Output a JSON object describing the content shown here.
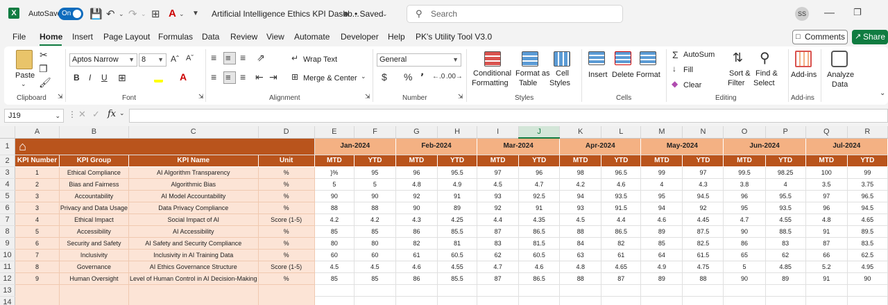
{
  "titlebar": {
    "logo": "X",
    "autosave_label": "AutoSave",
    "autosave_state": "On",
    "doc_title": "Artificial Intelligence Ethics KPI Dashb...",
    "saved_label": "• Saved",
    "search_placeholder": "Search",
    "avatar_initials": "SS"
  },
  "menu": {
    "items": [
      "File",
      "Home",
      "Insert",
      "Page Layout",
      "Formulas",
      "Data",
      "Review",
      "View",
      "Automate",
      "Developer",
      "Help",
      "PK's Utility Tool V3.0"
    ],
    "comments_label": "Comments",
    "share_label": "Share"
  },
  "ribbon": {
    "clipboard": {
      "paste": "Paste",
      "group": "Clipboard"
    },
    "font": {
      "name": "Aptos Narrow",
      "size": "8",
      "group": "Font"
    },
    "alignment": {
      "wrap": "Wrap Text",
      "merge": "Merge & Center",
      "group": "Alignment"
    },
    "number": {
      "format": "General",
      "group": "Number"
    },
    "styles": {
      "conditional": "Conditional",
      "conditional2": "Formatting",
      "format_as": "Format as",
      "format_as2": "Table",
      "cell": "Cell",
      "cell2": "Styles",
      "group": "Styles"
    },
    "cells": {
      "insert": "Insert",
      "delete": "Delete",
      "format": "Format",
      "group": "Cells"
    },
    "editing": {
      "autosum": "AutoSum",
      "fill": "Fill",
      "clear": "Clear",
      "sort": "Sort &",
      "sort2": "Filter",
      "find": "Find &",
      "find2": "Select",
      "group": "Editing"
    },
    "addins": {
      "label": "Add-ins",
      "group": "Add-ins"
    },
    "analyze": {
      "label": "Analyze",
      "label2": "Data"
    }
  },
  "formula_bar": {
    "name_box": "J19",
    "formula": ""
  },
  "sheet": {
    "selected_column": "J",
    "columns": [
      "A",
      "B",
      "C",
      "D",
      "E",
      "F",
      "G",
      "H",
      "I",
      "J",
      "K",
      "L",
      "M",
      "N",
      "O",
      "P",
      "Q",
      "R"
    ],
    "rows": [
      "1",
      "2",
      "3",
      "4",
      "5",
      "6",
      "7",
      "8",
      "9",
      "10",
      "11",
      "12",
      "13",
      "14"
    ],
    "months": [
      "Jan-2024",
      "Feb-2024",
      "Mar-2024",
      "Apr-2024",
      "May-2024",
      "Jun-2024",
      "Jul-2024"
    ],
    "headers": [
      "KPI Number",
      "KPI Group",
      "KPI Name",
      "Unit"
    ],
    "mtd": "MTD",
    "ytd": "YTD",
    "kpis": [
      {
        "num": "1",
        "group": "Ethical Compliance",
        "name": "AI Algorithm Transparency",
        "unit": "%",
        "vals": [
          "}%",
          "95",
          "96",
          "95.5",
          "97",
          "96",
          "98",
          "96.5",
          "99",
          "97",
          "99.5",
          "98.25",
          "100",
          "99"
        ]
      },
      {
        "num": "2",
        "group": "Bias and Fairness",
        "name": "Algorithmic Bias",
        "unit": "%",
        "vals": [
          "5",
          "5",
          "4.8",
          "4.9",
          "4.5",
          "4.7",
          "4.2",
          "4.6",
          "4",
          "4.3",
          "3.8",
          "4",
          "3.5",
          "3.75"
        ]
      },
      {
        "num": "3",
        "group": "Accountability",
        "name": "AI Model Accountability",
        "unit": "%",
        "vals": [
          "90",
          "90",
          "92",
          "91",
          "93",
          "92.5",
          "94",
          "93.5",
          "95",
          "94.5",
          "96",
          "95.5",
          "97",
          "96.5"
        ]
      },
      {
        "num": "3",
        "group": "Privacy and Data Usage",
        "name": "Data Privacy Compliance",
        "unit": "%",
        "vals": [
          "88",
          "88",
          "90",
          "89",
          "92",
          "91",
          "93",
          "91.5",
          "94",
          "92",
          "95",
          "93.5",
          "96",
          "94.5"
        ]
      },
      {
        "num": "4",
        "group": "Ethical Impact",
        "name": "Social Impact of AI",
        "unit": "Score (1-5)",
        "vals": [
          "4.2",
          "4.2",
          "4.3",
          "4.25",
          "4.4",
          "4.35",
          "4.5",
          "4.4",
          "4.6",
          "4.45",
          "4.7",
          "4.55",
          "4.8",
          "4.65"
        ]
      },
      {
        "num": "5",
        "group": "Accessibility",
        "name": "AI Accessibility",
        "unit": "%",
        "vals": [
          "85",
          "85",
          "86",
          "85.5",
          "87",
          "86.5",
          "88",
          "86.5",
          "89",
          "87.5",
          "90",
          "88.5",
          "91",
          "89.5"
        ]
      },
      {
        "num": "6",
        "group": "Security and Safety",
        "name": "AI Safety and Security Compliance",
        "unit": "%",
        "vals": [
          "80",
          "80",
          "82",
          "81",
          "83",
          "81.5",
          "84",
          "82",
          "85",
          "82.5",
          "86",
          "83",
          "87",
          "83.5"
        ]
      },
      {
        "num": "7",
        "group": "Inclusivity",
        "name": "Inclusivity in AI Training Data",
        "unit": "%",
        "vals": [
          "60",
          "60",
          "61",
          "60.5",
          "62",
          "60.5",
          "63",
          "61",
          "64",
          "61.5",
          "65",
          "62",
          "66",
          "62.5"
        ]
      },
      {
        "num": "8",
        "group": "Governance",
        "name": "AI Ethics Governance Structure",
        "unit": "Score (1-5)",
        "vals": [
          "4.5",
          "4.5",
          "4.6",
          "4.55",
          "4.7",
          "4.6",
          "4.8",
          "4.65",
          "4.9",
          "4.75",
          "5",
          "4.85",
          "5.2",
          "4.95"
        ]
      },
      {
        "num": "9",
        "group": "Human Oversight",
        "name": "Level of Human Control in AI Decision-Making",
        "unit": "%",
        "vals": [
          "85",
          "85",
          "86",
          "85.5",
          "87",
          "86.5",
          "88",
          "87",
          "89",
          "88",
          "90",
          "89",
          "91",
          "90"
        ]
      }
    ]
  },
  "colors": {
    "header_dark": "#b9541c",
    "header_light": "#f4b183",
    "left_fill": "#fce4d6",
    "excel_green": "#107c41"
  }
}
